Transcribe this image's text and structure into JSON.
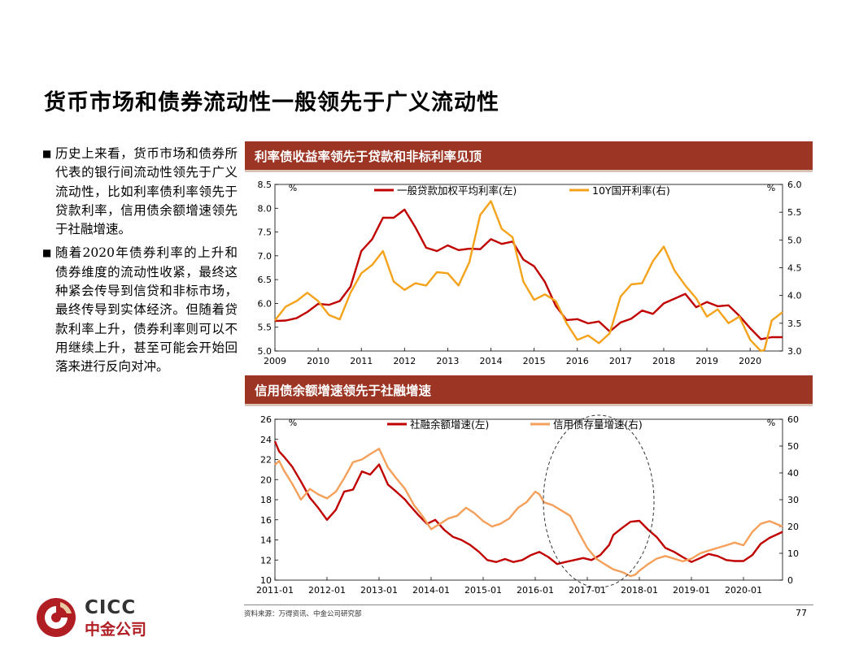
{
  "title": "货币市场和债券流动性一般领先于广义流动性",
  "bullets": [
    "历史上来看，货币市场和债券所代表的银行间流动性领先于广义流动性，比如利率债利率领先于贷款利率，信用债余额增速领先于社融增速。",
    "随着2020年债券利率的上升和债券维度的流动性收紧，最终这种紧会传导到信贷和非标市场，最终传导到实体经济。但随着贷款利率上升，债券利率则可以不用继续上升，甚至可能会开始回落来进行反向对冲。"
  ],
  "bullet_marker": "■",
  "source": "资料来源：万得资讯、中金公司研究部",
  "page_number": "77",
  "logo": {
    "word": "CICC",
    "cn": "中金公司"
  },
  "colors": {
    "header": "#9c3524",
    "dark_red": "#c00000",
    "orange": "#f5a21b",
    "light_orange": "#f5a05a",
    "logo_red": "#b01e23"
  },
  "chart_data": [
    {
      "type": "line",
      "header": "利率债收益率领先于贷款和非标利率见顶",
      "unit_left": "%",
      "unit_right": "%",
      "x_ticks": [
        "2009",
        "2010",
        "2011",
        "2012",
        "2013",
        "2014",
        "2015",
        "2016",
        "2017",
        "2018",
        "2019",
        "2020"
      ],
      "xlim": [
        2009.0,
        2020.75
      ],
      "ylim_left": [
        5.0,
        8.5
      ],
      "ylim_right": [
        3.0,
        6.0
      ],
      "yticks_left": [
        "5.0",
        "5.5",
        "6.0",
        "6.5",
        "7.0",
        "7.5",
        "8.0",
        "8.5"
      ],
      "yticks_right": [
        "3.0",
        "3.5",
        "4.0",
        "4.5",
        "5.0",
        "5.5",
        "6.0"
      ],
      "series": [
        {
          "name": "一般贷款加权平均利率(左)",
          "axis": "left",
          "color": "#c00000",
          "x": [
            2009.0,
            2009.25,
            2009.5,
            2009.75,
            2010.0,
            2010.25,
            2010.5,
            2010.75,
            2011.0,
            2011.25,
            2011.5,
            2011.75,
            2012.0,
            2012.25,
            2012.5,
            2012.75,
            2013.0,
            2013.25,
            2013.5,
            2013.75,
            2014.0,
            2014.25,
            2014.5,
            2014.75,
            2015.0,
            2015.25,
            2015.5,
            2015.75,
            2016.0,
            2016.25,
            2016.5,
            2016.75,
            2017.0,
            2017.25,
            2017.5,
            2017.75,
            2018.0,
            2018.25,
            2018.5,
            2018.75,
            2019.0,
            2019.25,
            2019.5,
            2019.75,
            2020.0,
            2020.25,
            2020.5,
            2020.75
          ],
          "y": [
            5.63,
            5.64,
            5.69,
            5.82,
            5.99,
            5.97,
            6.05,
            6.35,
            7.1,
            7.35,
            7.8,
            7.8,
            7.97,
            7.6,
            7.17,
            7.1,
            7.22,
            7.12,
            7.15,
            7.14,
            7.35,
            7.25,
            7.3,
            6.92,
            6.78,
            6.45,
            5.95,
            5.65,
            5.67,
            5.58,
            5.62,
            5.41,
            5.6,
            5.68,
            5.85,
            5.78,
            6.0,
            6.1,
            6.2,
            5.92,
            6.03,
            5.94,
            5.96,
            5.74,
            5.48,
            5.25,
            5.29,
            5.29
          ]
        },
        {
          "name": "10Y国开利率(右)",
          "axis": "right",
          "color": "#f5a21b",
          "x": [
            2009.0,
            2009.25,
            2009.5,
            2009.75,
            2010.0,
            2010.25,
            2010.5,
            2010.75,
            2011.0,
            2011.25,
            2011.5,
            2011.75,
            2012.0,
            2012.25,
            2012.5,
            2012.75,
            2013.0,
            2013.25,
            2013.5,
            2013.75,
            2014.0,
            2014.25,
            2014.5,
            2014.75,
            2015.0,
            2015.25,
            2015.5,
            2015.75,
            2016.0,
            2016.25,
            2016.5,
            2016.75,
            2017.0,
            2017.25,
            2017.5,
            2017.75,
            2018.0,
            2018.25,
            2018.5,
            2018.75,
            2019.0,
            2019.25,
            2019.5,
            2019.75,
            2020.0,
            2020.25,
            2020.33,
            2020.5,
            2020.75
          ],
          "y": [
            3.55,
            3.8,
            3.9,
            4.05,
            3.9,
            3.65,
            3.57,
            4.05,
            4.4,
            4.55,
            4.8,
            4.25,
            4.1,
            4.22,
            4.18,
            4.42,
            4.4,
            4.18,
            4.6,
            5.45,
            5.7,
            5.2,
            5.05,
            4.25,
            3.92,
            4.02,
            3.9,
            3.5,
            3.2,
            3.28,
            3.14,
            3.32,
            3.98,
            4.2,
            4.22,
            4.62,
            4.88,
            4.45,
            4.18,
            3.95,
            3.62,
            3.75,
            3.5,
            3.62,
            3.2,
            3.0,
            3.02,
            3.55,
            3.7
          ]
        }
      ]
    },
    {
      "type": "line",
      "header": "信用债余额增速领先于社融增速",
      "unit_left": "%",
      "unit_right": "%",
      "x_ticks": [
        "2011-01",
        "2012-01",
        "2013-01",
        "2014-01",
        "2015-01",
        "2016-01",
        "2017-01",
        "2018-01",
        "2019-01",
        "2020-01"
      ],
      "xlim": [
        2011.0,
        2020.75
      ],
      "ylim_left": [
        10,
        26
      ],
      "ylim_right": [
        0,
        60
      ],
      "yticks_left": [
        "10",
        "12",
        "14",
        "16",
        "18",
        "20",
        "22",
        "24",
        "26"
      ],
      "yticks_right": [
        "0",
        "10",
        "20",
        "30",
        "40",
        "50",
        "60"
      ],
      "annotation": "dashed circle highlighting 2016-2018 lead",
      "series": [
        {
          "name": "社融余额增速(左)",
          "axis": "left",
          "color": "#c00000",
          "x": [
            2011.0,
            2011.08,
            2011.17,
            2011.33,
            2011.5,
            2011.67,
            2011.83,
            2012.0,
            2012.17,
            2012.33,
            2012.5,
            2012.67,
            2012.83,
            2013.0,
            2013.17,
            2013.33,
            2013.5,
            2013.58,
            2013.75,
            2013.92,
            2014.08,
            2014.25,
            2014.42,
            2014.58,
            2014.75,
            2014.92,
            2015.08,
            2015.25,
            2015.42,
            2015.58,
            2015.75,
            2015.92,
            2016.08,
            2016.25,
            2016.42,
            2016.58,
            2016.75,
            2016.92,
            2017.08,
            2017.25,
            2017.42,
            2017.5,
            2017.67,
            2017.83,
            2018.0,
            2018.17,
            2018.33,
            2018.5,
            2018.67,
            2018.83,
            2019.0,
            2019.17,
            2019.33,
            2019.5,
            2019.67,
            2019.83,
            2020.0,
            2020.17,
            2020.33,
            2020.5,
            2020.75
          ],
          "y": [
            23.8,
            22.8,
            22.3,
            21.3,
            19.8,
            18.2,
            17.2,
            16.0,
            17.0,
            18.8,
            19.0,
            20.8,
            20.5,
            21.5,
            19.5,
            18.8,
            18.0,
            17.5,
            16.5,
            15.6,
            16.0,
            15.0,
            14.3,
            14.0,
            13.5,
            12.8,
            12.0,
            11.8,
            12.1,
            11.8,
            12.0,
            12.5,
            12.8,
            12.3,
            11.6,
            11.8,
            12.0,
            12.2,
            12.0,
            12.5,
            13.5,
            14.5,
            15.2,
            15.8,
            15.9,
            15.0,
            14.3,
            13.2,
            12.8,
            12.3,
            11.8,
            12.2,
            12.6,
            12.4,
            12.0,
            11.9,
            11.9,
            12.5,
            13.6,
            14.2,
            14.8
          ]
        },
        {
          "name": "信用债存量增速(右)",
          "axis": "right",
          "color": "#f5a05a",
          "x": [
            2011.0,
            2011.08,
            2011.17,
            2011.33,
            2011.5,
            2011.67,
            2011.83,
            2012.0,
            2012.17,
            2012.33,
            2012.5,
            2012.67,
            2012.83,
            2013.0,
            2013.17,
            2013.33,
            2013.5,
            2013.67,
            2013.83,
            2014.0,
            2014.17,
            2014.33,
            2014.5,
            2014.67,
            2014.83,
            2015.0,
            2015.17,
            2015.33,
            2015.5,
            2015.67,
            2015.83,
            2016.0,
            2016.08,
            2016.17,
            2016.33,
            2016.5,
            2016.67,
            2016.83,
            2017.0,
            2017.17,
            2017.33,
            2017.5,
            2017.67,
            2017.83,
            2017.92,
            2018.0,
            2018.17,
            2018.33,
            2018.5,
            2018.67,
            2018.83,
            2019.0,
            2019.17,
            2019.33,
            2019.5,
            2019.67,
            2019.83,
            2020.0,
            2020.17,
            2020.33,
            2020.5,
            2020.75
          ],
          "y": [
            43.0,
            44.5,
            41.0,
            36.0,
            30.0,
            34.0,
            32.0,
            30.5,
            33.0,
            38.0,
            44.0,
            45.0,
            47.0,
            49.0,
            42.0,
            38.0,
            34.0,
            28.0,
            24.0,
            19.0,
            21.0,
            23.0,
            24.0,
            27.0,
            25.0,
            22.0,
            20.0,
            21.0,
            23.0,
            27.0,
            29.0,
            33.0,
            32.0,
            29.0,
            28.0,
            26.0,
            24.0,
            18.0,
            12.0,
            8.0,
            6.0,
            4.0,
            3.0,
            1.5,
            2.0,
            3.5,
            6.0,
            8.0,
            9.0,
            8.0,
            7.0,
            8.0,
            10.0,
            11.0,
            12.0,
            13.0,
            14.0,
            13.0,
            18.0,
            21.0,
            22.0,
            20.0
          ]
        }
      ]
    }
  ]
}
